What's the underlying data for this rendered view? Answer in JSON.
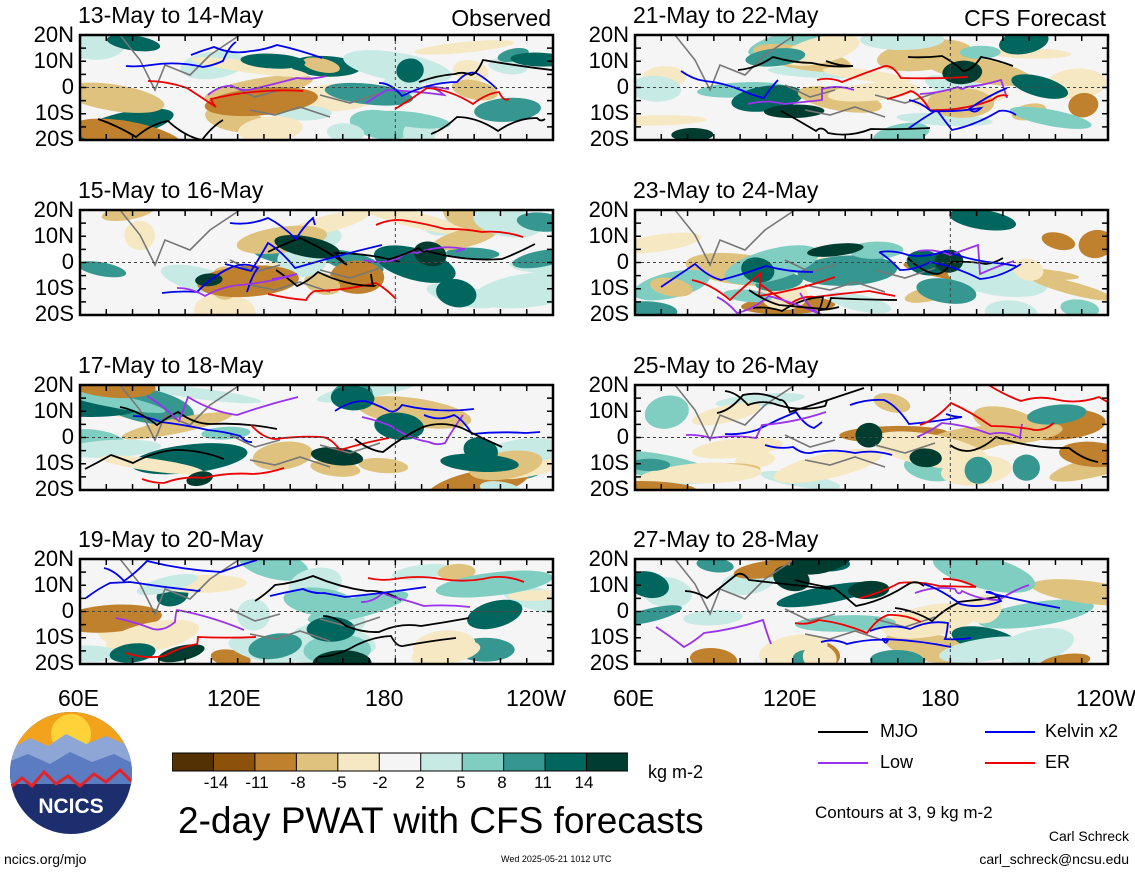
{
  "panels": [
    {
      "period": "13-May to 14-May",
      "tag": "Observed"
    },
    {
      "period": "21-May to 22-May",
      "tag": "CFS Forecast"
    },
    {
      "period": "15-May to 16-May",
      "tag": ""
    },
    {
      "period": "23-May to 24-May",
      "tag": ""
    },
    {
      "period": "17-May to 18-May",
      "tag": ""
    },
    {
      "period": "25-May to 26-May",
      "tag": ""
    },
    {
      "period": "19-May to 20-May",
      "tag": ""
    },
    {
      "period": "27-May to 28-May",
      "tag": ""
    }
  ],
  "lat_labels": [
    "20N",
    "10N",
    "0",
    "10S",
    "20S"
  ],
  "lon_labels": [
    "60E",
    "120E",
    "180",
    "120W"
  ],
  "colorbar": {
    "labels": [
      "-14",
      "-11",
      "-8",
      "-5",
      "-2",
      "2",
      "5",
      "8",
      "11",
      "14"
    ],
    "colors": [
      "#543005",
      "#8c510a",
      "#bf812d",
      "#dfc27d",
      "#f6e8c3",
      "#f5f5f5",
      "#c7eae5",
      "#80cdc1",
      "#35978f",
      "#01665e",
      "#003c30"
    ],
    "units": "kg m-2"
  },
  "legend": {
    "mjo": "MJO",
    "kelvin": "Kelvin x2",
    "low": "Low",
    "er": "ER",
    "colors": {
      "mjo": "#000000",
      "kelvin": "#0000ee",
      "low": "#9a32ee",
      "er": "#ee0000"
    },
    "contours_note": "Contours at 3, 9 kg m-2"
  },
  "title": "2-day PWAT with CFS forecasts",
  "logo_text": "NCICS",
  "footer": {
    "left": "ncics.org/mjo",
    "center": "Wed 2025-05-21 1012 UTC",
    "author": "Carl Schreck",
    "email": "carl_schreck@ncsu.edu"
  },
  "chart_data": {
    "type": "heatmap",
    "title": "2-day PWAT with CFS forecasts",
    "units": "kg m-2",
    "x_range": [
      "60E",
      "120W"
    ],
    "y_range": [
      "20S",
      "20N"
    ],
    "x_ticks": [
      "60E",
      "120E",
      "180",
      "120W"
    ],
    "y_ticks": [
      "20N",
      "10N",
      "0",
      "10S",
      "20S"
    ],
    "color_levels": [
      -14,
      -11,
      -8,
      -5,
      -2,
      2,
      5,
      8,
      11,
      14
    ],
    "contour_levels": [
      3,
      9
    ],
    "series": [
      {
        "name": "MJO"
      },
      {
        "name": "Kelvin x2"
      },
      {
        "name": "Low"
      },
      {
        "name": "ER"
      }
    ],
    "panels": [
      "13-May to 14-May",
      "15-May to 16-May",
      "17-May to 18-May",
      "19-May to 20-May",
      "21-May to 22-May",
      "23-May to 24-May",
      "25-May to 26-May",
      "27-May to 28-May"
    ]
  }
}
